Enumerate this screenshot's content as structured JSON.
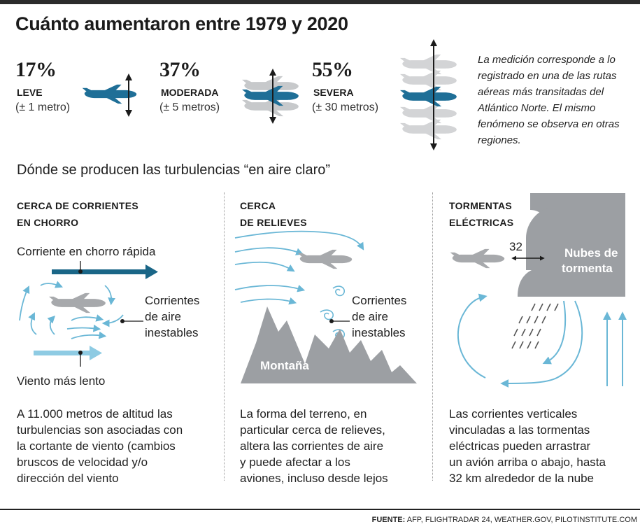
{
  "title": "Cuánto aumentaron entre 1979 y 2020",
  "levels": [
    {
      "percent": "17%",
      "name": "LEVE",
      "range": "(± 1 metro)"
    },
    {
      "percent": "37%",
      "name": "MODERADA",
      "range": "(± 5 metros)"
    },
    {
      "percent": "55%",
      "name": "SEVERA",
      "range": "(± 30 metros)"
    }
  ],
  "note": "La medición corresponde a lo registrado en una de las rutas aéreas más transitadas del Atlántico Norte. El mismo fenómeno se observa en otras regiones.",
  "subtitle": "Dónde se producen las turbulencias “en aire claro”",
  "columns": [
    {
      "heading_line1": "CERCA DE CORRIENTES",
      "heading_line2": "EN CHORRO",
      "label_fast": "Corriente en chorro rápida",
      "label_unstable_1": "Corrientes",
      "label_unstable_2": "de aire",
      "label_unstable_3": "inestables",
      "label_slow": "Viento más lento",
      "text": [
        "A 11.000 metros de altitud las",
        "turbulencias son asociadas con",
        "la cortante de viento (cambios",
        "bruscos de velocidad y/o",
        "dirección del viento"
      ]
    },
    {
      "heading_line1": "CERCA",
      "heading_line2": "DE  RELIEVES",
      "label_unstable_1": "Corrientes",
      "label_unstable_2": "de aire",
      "label_unstable_3": "inestables",
      "mountain_label": "Montaña",
      "text": [
        "La forma del terreno, en",
        "particular cerca de relieves,",
        "altera las corrientes de aire",
        "y puede afectar a los",
        "aviones, incluso desde lejos"
      ]
    },
    {
      "heading_line1": "TORMENTAS",
      "heading_line2": "ELÉCTRICAS",
      "distance": "32 km.",
      "cloud_label_1": "Nubes de",
      "cloud_label_2": "tormenta",
      "text": [
        "Las corrientes verticales",
        "vinculadas a las tormentas",
        "eléctricas pueden arrastrar",
        "un avión arriba o abajo, hasta",
        "32 km alrededor de la nube"
      ]
    }
  ],
  "source_label": "FUENTE:",
  "source_text": "AFP, FLIGHTRADAR 24, WEATHER.GOV, PILOTINSTITUTE.COM",
  "colors": {
    "plane_blue": "#1f6f97",
    "plane_gray": "#a7a9ac",
    "arrow_blue": "#6ab7d6",
    "jet_dark": "#1a6687",
    "jet_light": "#8ecbe3",
    "cloud": "#9c9fa3"
  }
}
